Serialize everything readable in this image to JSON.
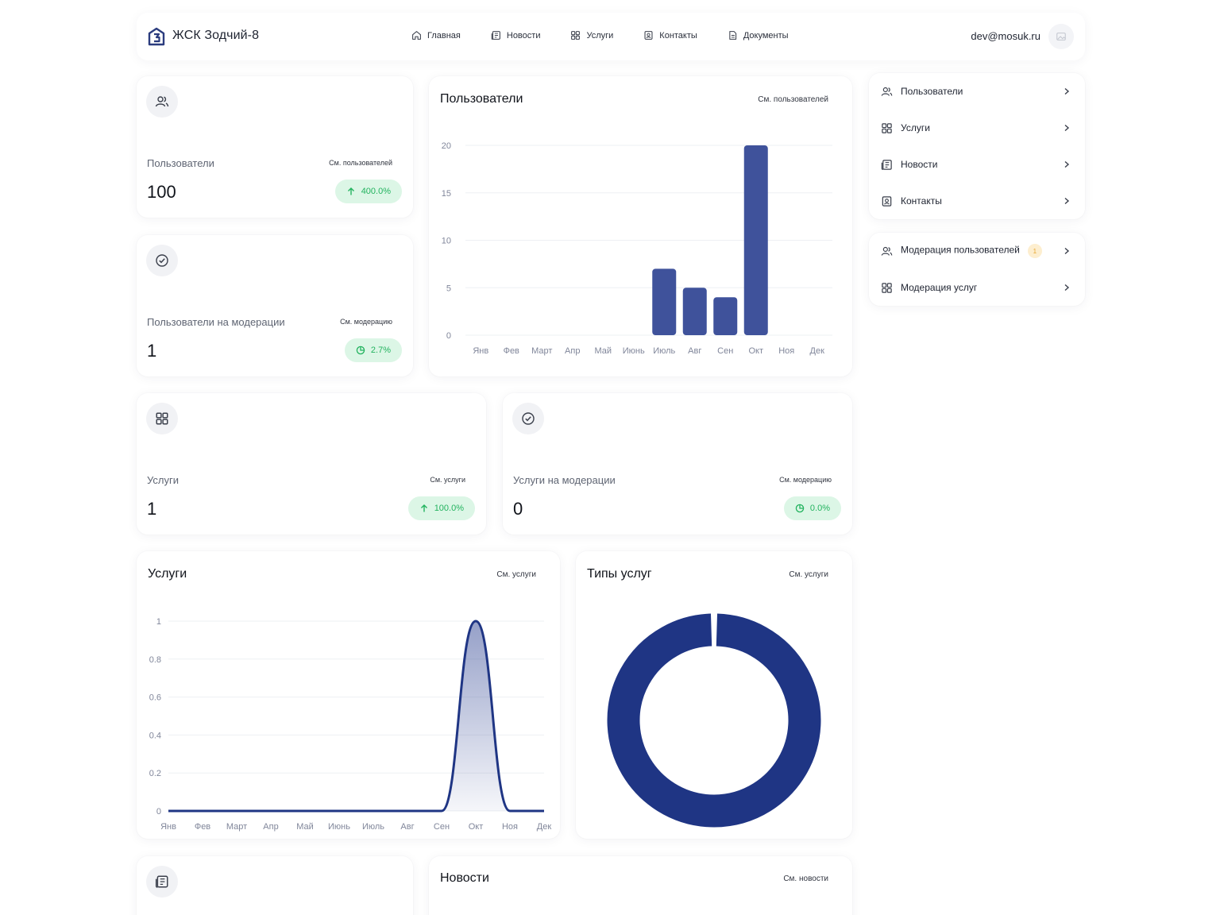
{
  "header": {
    "brand": "ЖСК Зодчий-8",
    "nav": [
      {
        "label": "Главная",
        "icon": "home-icon"
      },
      {
        "label": "Новости",
        "icon": "news-icon"
      },
      {
        "label": "Услуги",
        "icon": "grid-icon"
      },
      {
        "label": "Контакты",
        "icon": "contact-icon"
      },
      {
        "label": "Документы",
        "icon": "document-icon"
      }
    ],
    "user_email": "dev@mosuk.ru"
  },
  "stats": {
    "users": {
      "label": "Пользователи",
      "link": "См. пользователей",
      "value": "100",
      "change": "400.0%",
      "icon": "users-icon",
      "change_icon": "arrow-up-icon"
    },
    "users_moderation": {
      "label": "Пользователи на модерации",
      "link": "См. модерацию",
      "value": "1",
      "change": "2.7%",
      "icon": "check-badge-icon",
      "change_icon": "pie-icon"
    },
    "services": {
      "label": "Услуги",
      "link": "См. услуги",
      "value": "1",
      "change": "100.0%",
      "icon": "grid-icon",
      "change_icon": "arrow-up-icon"
    },
    "services_moderation": {
      "label": "Услуги на модерации",
      "link": "См. модерацию",
      "value": "0",
      "change": "0.0%",
      "icon": "check-badge-icon",
      "change_icon": "pie-icon"
    }
  },
  "users_chart_card": {
    "title": "Пользователи",
    "link": "См. пользователей"
  },
  "services_chart_card": {
    "title": "Услуги",
    "link": "См. услуги"
  },
  "types_chart_card": {
    "title": "Типы услуг",
    "link": "См. услуги"
  },
  "news_card": {
    "title": "Новости",
    "link": "См. новости",
    "icon": "newspaper-icon"
  },
  "side_menu": {
    "group1": [
      {
        "label": "Пользователи",
        "icon": "users-icon"
      },
      {
        "label": "Услуги",
        "icon": "grid-icon"
      },
      {
        "label": "Новости",
        "icon": "news-icon"
      },
      {
        "label": "Контакты",
        "icon": "contact-icon"
      }
    ],
    "group2": [
      {
        "label": "Модерация пользователей",
        "icon": "users-icon",
        "badge": "1"
      },
      {
        "label": "Модерация услуг",
        "icon": "grid-icon"
      }
    ]
  },
  "colors": {
    "accent": "#3f529b",
    "donut": "#1f3584",
    "pill_bg": "#dcf6e6",
    "pill_text": "#23b35f"
  },
  "chart_data": [
    {
      "type": "bar",
      "title": "Пользователи",
      "categories": [
        "Янв",
        "Фев",
        "Март",
        "Апр",
        "Май",
        "Июнь",
        "Июль",
        "Авг",
        "Сен",
        "Окт",
        "Ноя",
        "Дек"
      ],
      "values": [
        0,
        0,
        0,
        0,
        0,
        0,
        7,
        5,
        4,
        20,
        0,
        0
      ],
      "ylim": [
        0,
        20
      ],
      "yticks": [
        "0",
        "5",
        "10",
        "15",
        "20"
      ],
      "grid": true
    },
    {
      "type": "area",
      "title": "Услуги",
      "categories": [
        "Янв",
        "Фев",
        "Март",
        "Апр",
        "Май",
        "Июнь",
        "Июль",
        "Авг",
        "Сен",
        "Окт",
        "Ноя",
        "Дек"
      ],
      "values": [
        0,
        0,
        0,
        0,
        0,
        0,
        0,
        0,
        0,
        1,
        0,
        0
      ],
      "ylim": [
        0,
        1
      ],
      "yticks": [
        "0",
        "0.2",
        "0.4",
        "0.6",
        "0.8",
        "1"
      ],
      "grid": true
    },
    {
      "type": "pie",
      "title": "Типы услуг",
      "values": [
        1
      ],
      "donut": true
    }
  ]
}
